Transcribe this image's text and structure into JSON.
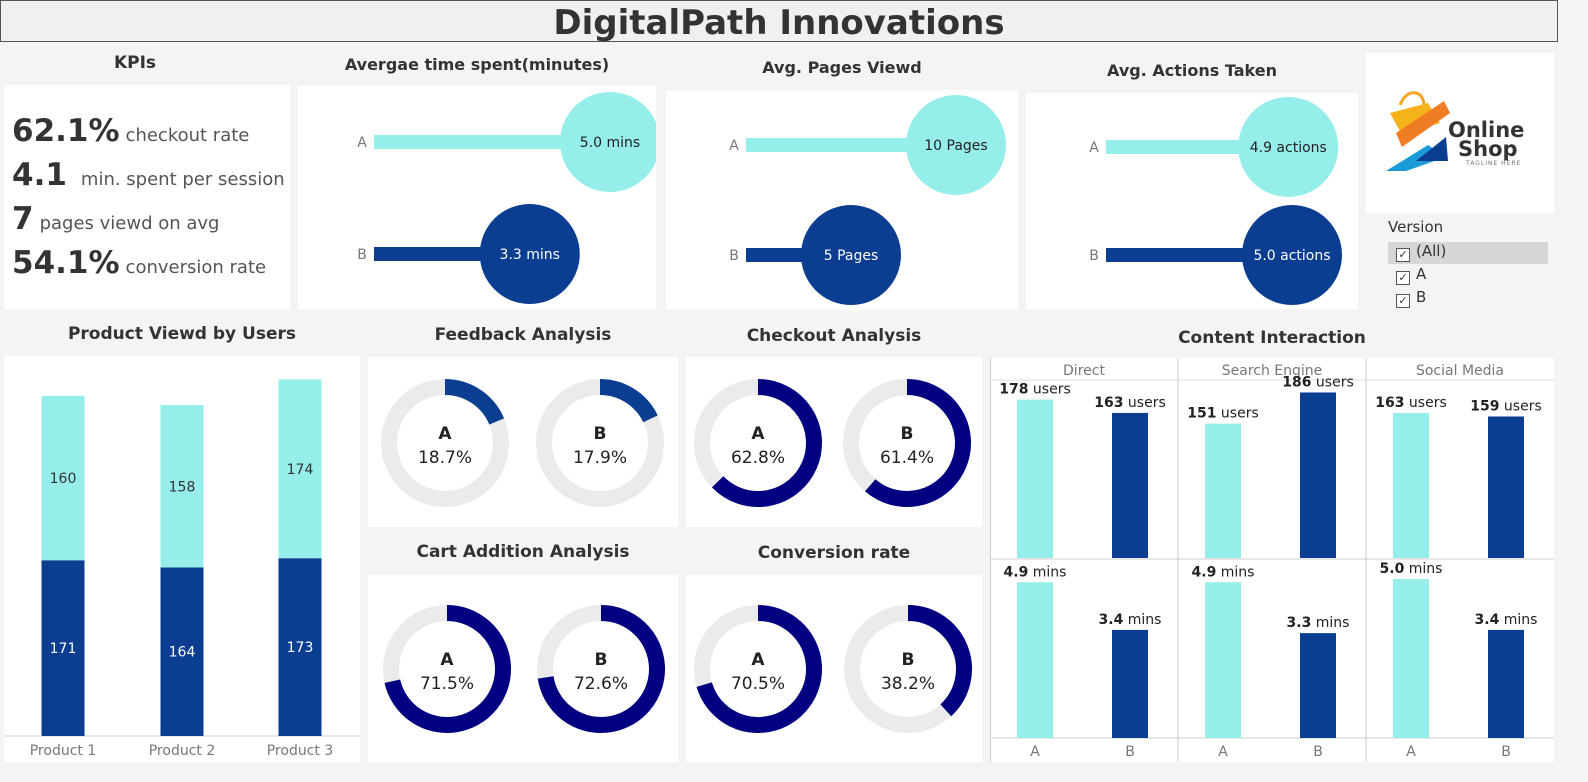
{
  "title": "DigitalPath Innovations",
  "colors": {
    "version_a": "#96eeea",
    "version_b": "#0b3d91",
    "donut_fill": "#000080",
    "donut_track": "#ebebeb"
  },
  "kpis": {
    "title": "KPIs",
    "items": [
      {
        "value": "62.1%",
        "label": "checkout rate"
      },
      {
        "value": "4.1",
        "label": "min. spent per session"
      },
      {
        "value": "7",
        "label": "pages viewd on avg"
      },
      {
        "value": "54.1%",
        "label": "conversion rate"
      }
    ]
  },
  "logo": {
    "line1": "Online",
    "line2": "Shop",
    "tagline": "TAGLINE HERE"
  },
  "version_filter": {
    "title": "Version",
    "options": [
      {
        "label": "(All)",
        "checked": true,
        "selected": true
      },
      {
        "label": "A",
        "checked": true,
        "selected": false
      },
      {
        "label": "B",
        "checked": true,
        "selected": false
      }
    ]
  },
  "chart_data": [
    {
      "id": "avg-time",
      "type": "lollipop",
      "title": "Avergae time spent(minutes)",
      "categories": [
        "A",
        "B"
      ],
      "values": [
        5.0,
        3.3
      ],
      "labels": [
        "5.0 mins",
        "3.3 mins"
      ],
      "xlim": [
        0,
        5.0
      ]
    },
    {
      "id": "avg-pages",
      "type": "lollipop",
      "title": "Avg. Pages Viewd",
      "categories": [
        "A",
        "B"
      ],
      "values": [
        10,
        5
      ],
      "labels": [
        "10 Pages",
        "5 Pages"
      ],
      "xlim": [
        0,
        10
      ]
    },
    {
      "id": "avg-actions",
      "type": "lollipop",
      "title": "Avg. Actions Taken",
      "categories": [
        "A",
        "B"
      ],
      "values": [
        4.9,
        5.0
      ],
      "labels": [
        "4.9 actions",
        "5.0 actions"
      ],
      "xlim": [
        0,
        5.0
      ]
    },
    {
      "id": "product-viewed",
      "type": "bar",
      "stacked": true,
      "title": "Product Viewd by Users",
      "categories": [
        "Product 1",
        "Product 2",
        "Product 3"
      ],
      "series": [
        {
          "version": "B",
          "values": [
            171,
            164,
            173
          ]
        },
        {
          "version": "A",
          "values": [
            160,
            158,
            174
          ]
        }
      ],
      "ylim": [
        0,
        360
      ]
    },
    {
      "id": "feedback",
      "type": "pie",
      "variant": "donut",
      "title": "Feedback Analysis",
      "versions": [
        "A",
        "B"
      ],
      "values": [
        18.7,
        17.9
      ],
      "labels": [
        "18.7%",
        "17.9%"
      ]
    },
    {
      "id": "checkout",
      "type": "pie",
      "variant": "donut",
      "title": "Checkout Analysis",
      "versions": [
        "A",
        "B"
      ],
      "values": [
        62.8,
        61.4
      ],
      "labels": [
        "62.8%",
        "61.4%"
      ]
    },
    {
      "id": "cart-addition",
      "type": "pie",
      "variant": "donut",
      "title": "Cart Addition Analysis",
      "versions": [
        "A",
        "B"
      ],
      "values": [
        71.5,
        72.6
      ],
      "labels": [
        "71.5%",
        "72.6%"
      ]
    },
    {
      "id": "conversion",
      "type": "pie",
      "variant": "donut",
      "title": "Conversion rate",
      "versions": [
        "A",
        "B"
      ],
      "values": [
        70.5,
        38.2
      ],
      "labels": [
        "70.5%",
        "38.2%"
      ]
    },
    {
      "id": "content-interaction",
      "type": "bar",
      "title": "Content Interaction",
      "columns": [
        "Direct",
        "Search Engine",
        "Social Media"
      ],
      "x": [
        "A",
        "B"
      ],
      "rows": [
        {
          "unit": "users",
          "ylim": [
            0,
            200
          ],
          "values": [
            [
              178,
              163
            ],
            [
              151,
              186
            ],
            [
              163,
              159
            ]
          ],
          "labels": [
            [
              "178",
              "163"
            ],
            [
              "151",
              "186"
            ],
            [
              "163",
              "159"
            ]
          ]
        },
        {
          "unit": "mins",
          "ylim": [
            0,
            5.6
          ],
          "values": [
            [
              4.9,
              3.4
            ],
            [
              4.9,
              3.3
            ],
            [
              5.0,
              3.4
            ]
          ],
          "labels": [
            [
              "4.9",
              "3.4"
            ],
            [
              "4.9",
              "3.3"
            ],
            [
              "5.0",
              "3.4"
            ]
          ]
        }
      ]
    }
  ]
}
